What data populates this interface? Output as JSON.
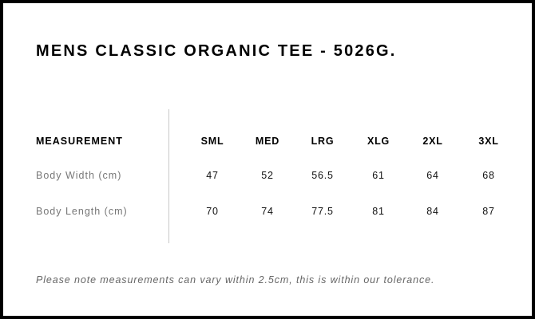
{
  "title": "MENS CLASSIC ORGANIC TEE - 5026G.",
  "table": {
    "header_label": "MEASUREMENT",
    "sizes": [
      "SML",
      "MED",
      "LRG",
      "XLG",
      "2XL",
      "3XL"
    ],
    "rows": [
      {
        "label": "Body Width (cm)",
        "values": [
          "47",
          "52",
          "56.5",
          "61",
          "64",
          "68"
        ]
      },
      {
        "label": "Body Length (cm)",
        "values": [
          "70",
          "74",
          "77.5",
          "81",
          "84",
          "87"
        ]
      }
    ]
  },
  "note": "Please note measurements can vary within 2.5cm, this is within our tolerance."
}
